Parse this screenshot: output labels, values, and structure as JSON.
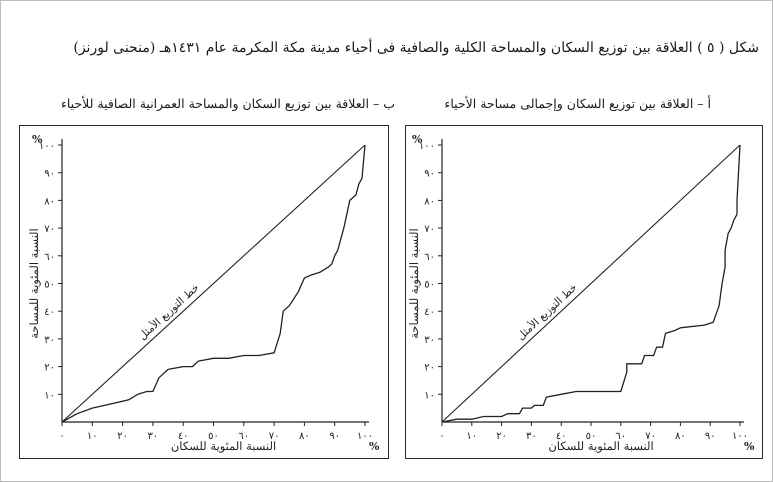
{
  "figure": {
    "title": "شكل ( ٥ ) العلاقة بين توزيع السكان والمساحة الكلية والصافية فى أحياء مدينة مكة المكرمة عام ١٤٣١هـ (منحنى لورنز)"
  },
  "chart_data": [
    {
      "id": "a",
      "type": "line",
      "title": "أ – العلاقة بين توزيع السكان وإجمالى مساحة الأحياء",
      "xlabel": "النسبة المئوية للسكان",
      "ylabel": "النسبة المئوية للمساحة",
      "x_unit": "%",
      "y_unit": "%",
      "xlim": [
        0,
        100
      ],
      "ylim": [
        0,
        100
      ],
      "x_tick_labels": [
        "٠",
        "١٠",
        "٢٠",
        "٣٠",
        "٤٠",
        "٥٠",
        "٦٠",
        "٧٠",
        "٨٠",
        "٩٠",
        "١٠٠"
      ],
      "y_tick_labels": [
        "١٠٠",
        "٩٠",
        "٨٠",
        "٧٠",
        "٦٠",
        "٥٠",
        "٤٠",
        "٣٠",
        "٢٠",
        "١٠"
      ],
      "grid": false,
      "diagonal_label": "خط التوزيع الأمثل",
      "lorenz": [
        [
          0,
          0
        ],
        [
          5,
          1
        ],
        [
          10,
          1
        ],
        [
          14,
          2
        ],
        [
          20,
          2
        ],
        [
          22,
          3
        ],
        [
          26,
          3
        ],
        [
          27,
          5
        ],
        [
          30,
          5
        ],
        [
          31,
          6
        ],
        [
          34,
          6
        ],
        [
          35,
          9
        ],
        [
          40,
          10
        ],
        [
          45,
          11
        ],
        [
          60,
          11
        ],
        [
          62,
          18
        ],
        [
          62,
          21
        ],
        [
          67,
          21
        ],
        [
          68,
          24
        ],
        [
          71,
          24
        ],
        [
          72,
          27
        ],
        [
          74,
          27
        ],
        [
          75,
          32
        ],
        [
          78,
          33
        ],
        [
          80,
          34
        ],
        [
          88,
          35
        ],
        [
          91,
          36
        ],
        [
          93,
          42
        ],
        [
          94,
          50
        ],
        [
          95,
          56
        ],
        [
          95,
          62
        ],
        [
          96,
          68
        ],
        [
          97,
          70
        ],
        [
          98,
          73
        ],
        [
          99,
          75
        ],
        [
          99,
          80
        ],
        [
          100,
          100
        ]
      ]
    },
    {
      "id": "b",
      "type": "line",
      "title": "ب – العلاقة بين توزيع السكان والمساحة العمرانية الصافية للأحياء",
      "xlabel": "النسبة المئوية للسكان",
      "ylabel": "النسبة المئوية للمساحة",
      "x_unit": "%",
      "y_unit": "%",
      "xlim": [
        0,
        100
      ],
      "ylim": [
        0,
        100
      ],
      "x_tick_labels": [
        "٠",
        "١٠",
        "٢٠",
        "٣٠",
        "٤٠",
        "٥٠",
        "٦٠",
        "٧٠",
        "٨٠",
        "٩٠",
        "١٠٠"
      ],
      "y_tick_labels": [
        "١٠٠",
        "٩٠",
        "٨٠",
        "٧٠",
        "٦٠",
        "٥٠",
        "٤٠",
        "٣٠",
        "٢٠",
        "١٠"
      ],
      "grid": false,
      "diagonal_label": "خط التوزيع الأمثل",
      "lorenz": [
        [
          0,
          0
        ],
        [
          5,
          3
        ],
        [
          10,
          5
        ],
        [
          18,
          7
        ],
        [
          22,
          8
        ],
        [
          25,
          10
        ],
        [
          28,
          11
        ],
        [
          30,
          11
        ],
        [
          32,
          16
        ],
        [
          35,
          19
        ],
        [
          40,
          20
        ],
        [
          43,
          20
        ],
        [
          45,
          22
        ],
        [
          50,
          23
        ],
        [
          55,
          23
        ],
        [
          60,
          24
        ],
        [
          65,
          24
        ],
        [
          70,
          25
        ],
        [
          72,
          32
        ],
        [
          73,
          40
        ],
        [
          75,
          42
        ],
        [
          78,
          47
        ],
        [
          80,
          52
        ],
        [
          82,
          53
        ],
        [
          85,
          54
        ],
        [
          88,
          56
        ],
        [
          89,
          57
        ],
        [
          90,
          60
        ],
        [
          91,
          62
        ],
        [
          93,
          70
        ],
        [
          94,
          75
        ],
        [
          95,
          80
        ],
        [
          97,
          82
        ],
        [
          98,
          86
        ],
        [
          99,
          88
        ],
        [
          100,
          100
        ]
      ]
    }
  ]
}
